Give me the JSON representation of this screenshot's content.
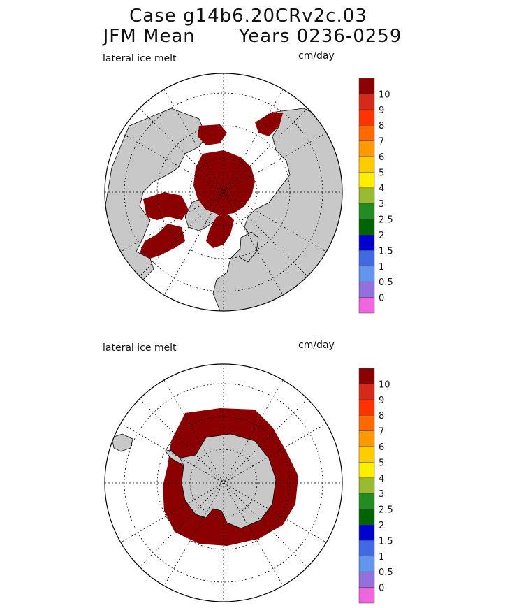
{
  "header": {
    "title_line1": "Case g14b6.20CRv2c.03",
    "title_line2_left": "JFM Mean",
    "title_line2_right": "Years 0236-0259"
  },
  "panels": [
    {
      "id": "north",
      "variable_label": "lateral ice melt",
      "units_label": "cm/day",
      "hemisphere": "north"
    },
    {
      "id": "south",
      "variable_label": "lateral ice melt",
      "units_label": "cm/day",
      "hemisphere": "south"
    }
  ],
  "colorbar": {
    "labels": [
      "10",
      "9",
      "8",
      "7",
      "6",
      "5",
      "4",
      "3",
      "2.5",
      "2",
      "1.5",
      "1",
      "0.5",
      "0"
    ],
    "colors": [
      "#8b0000",
      "#d42a1a",
      "#ff3300",
      "#ff6a00",
      "#ff9900",
      "#ffcc00",
      "#ffee00",
      "#99bb33",
      "#228b22",
      "#006400",
      "#0000cc",
      "#4169e1",
      "#6495ed",
      "#9370db",
      "#ee66dd"
    ]
  },
  "colors": {
    "land": "#c8c8c8",
    "ice_melt_max": "#8b0000",
    "ocean": "#ffffff"
  }
}
